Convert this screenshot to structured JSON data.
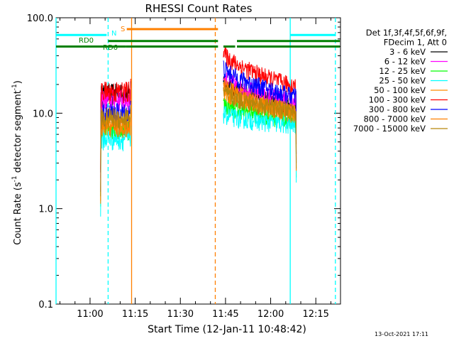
{
  "chart_data": {
    "type": "line",
    "title": "RHESSI Count Rates",
    "xlabel": "Start Time (12-Jan-11 10:48:42)",
    "ylabel_main": "Count Rate (s",
    "ylabel_sup": "-1",
    "ylabel_mid": " detector segment",
    "ylabel_sup2": "-1",
    "ylabel_end": ")",
    "yscale": "log",
    "ylim": [
      0.1,
      100
    ],
    "xlim_minutes": [
      48.7,
      143.2
    ],
    "x_tick_minutes": [
      60,
      75,
      90,
      105,
      120,
      135
    ],
    "x_tick_labels": [
      "11:00",
      "11:15",
      "11:30",
      "11:45",
      "12:00",
      "12:15"
    ],
    "y_ticks": [
      0.1,
      1.0,
      10.0,
      100.0
    ],
    "y_tick_labels": [
      "0.1",
      "1.0",
      "10.0",
      "100.0"
    ],
    "legend_header": [
      "Det 1f,3f,4f,5f,6f,9f,",
      "FDecim 1, Att 0"
    ],
    "series": [
      {
        "name": "3 - 6 keV",
        "color": "#000000",
        "flare": 16.0,
        "post_start": 22.0,
        "post_end": 12.0
      },
      {
        "name": "6 - 12 keV",
        "color": "#ff00ff",
        "flare": 14.0,
        "post_start": 25.0,
        "post_end": 13.0
      },
      {
        "name": "12 - 25 keV",
        "color": "#00ff00",
        "flare": 7.0,
        "post_start": 13.0,
        "post_end": 8.5
      },
      {
        "name": "25 - 50 keV",
        "color": "#00ffff",
        "flare": 5.5,
        "post_start": 10.0,
        "post_end": 7.5
      },
      {
        "name": "50 - 100 keV",
        "color": "#ff8c00",
        "flare": 8.0,
        "post_start": 18.0,
        "post_end": 10.0
      },
      {
        "name": "100 - 300 keV",
        "color": "#ff0000",
        "flare": 17.0,
        "post_start": 45.0,
        "post_end": 19.0
      },
      {
        "name": "300 - 800 keV",
        "color": "#0000ff",
        "flare": 10.0,
        "post_start": 31.0,
        "post_end": 15.0
      },
      {
        "name": "800 - 7000 keV",
        "color": "#ff8000",
        "flare": 7.5,
        "post_start": 21.0,
        "post_end": 10.0
      },
      {
        "name": "7000 - 15000 keV",
        "color": "#b8860b",
        "flare": 9.0,
        "post_start": 17.0,
        "post_end": 10.5
      }
    ],
    "flags": [
      {
        "label": "RD0",
        "color": "#00ffff",
        "level": 66,
        "segments": [
          [
            48.7,
            65.5
          ],
          [
            126.5,
            141.5
          ]
        ]
      },
      {
        "label": "N",
        "color": "#00ffff",
        "level": 60,
        "segments": []
      },
      {
        "label": "S",
        "color": "#ff8000",
        "level": 76,
        "segments": [
          [
            72.2,
            102.5
          ]
        ]
      },
      {
        "label": "RD6",
        "color": "#008000",
        "level": 50,
        "segments": [
          [
            48.7,
            72.0
          ],
          [
            72.0,
            102.5
          ],
          [
            104.3,
            108.2
          ],
          [
            108.8,
            143.0
          ]
        ]
      }
    ],
    "extra_green_level": 57,
    "vertical_lines": [
      {
        "minute": 48.7,
        "color": "#00ffff",
        "style": "solid"
      },
      {
        "minute": 66.0,
        "color": "#00ffff",
        "style": "dashed"
      },
      {
        "minute": 73.8,
        "color": "#ff8000",
        "style": "solid"
      },
      {
        "minute": 101.6,
        "color": "#ff8000",
        "style": "dashed"
      },
      {
        "minute": 126.5,
        "color": "#00ffff",
        "style": "solid"
      },
      {
        "minute": 141.5,
        "color": "#00ffff",
        "style": "dashed"
      }
    ],
    "data_segments": [
      {
        "start": 63.5,
        "end": 73.5
      },
      {
        "start": 104.3,
        "end": 128.5
      }
    ],
    "footer_stamp": "13-Oct-2021 17:11"
  }
}
